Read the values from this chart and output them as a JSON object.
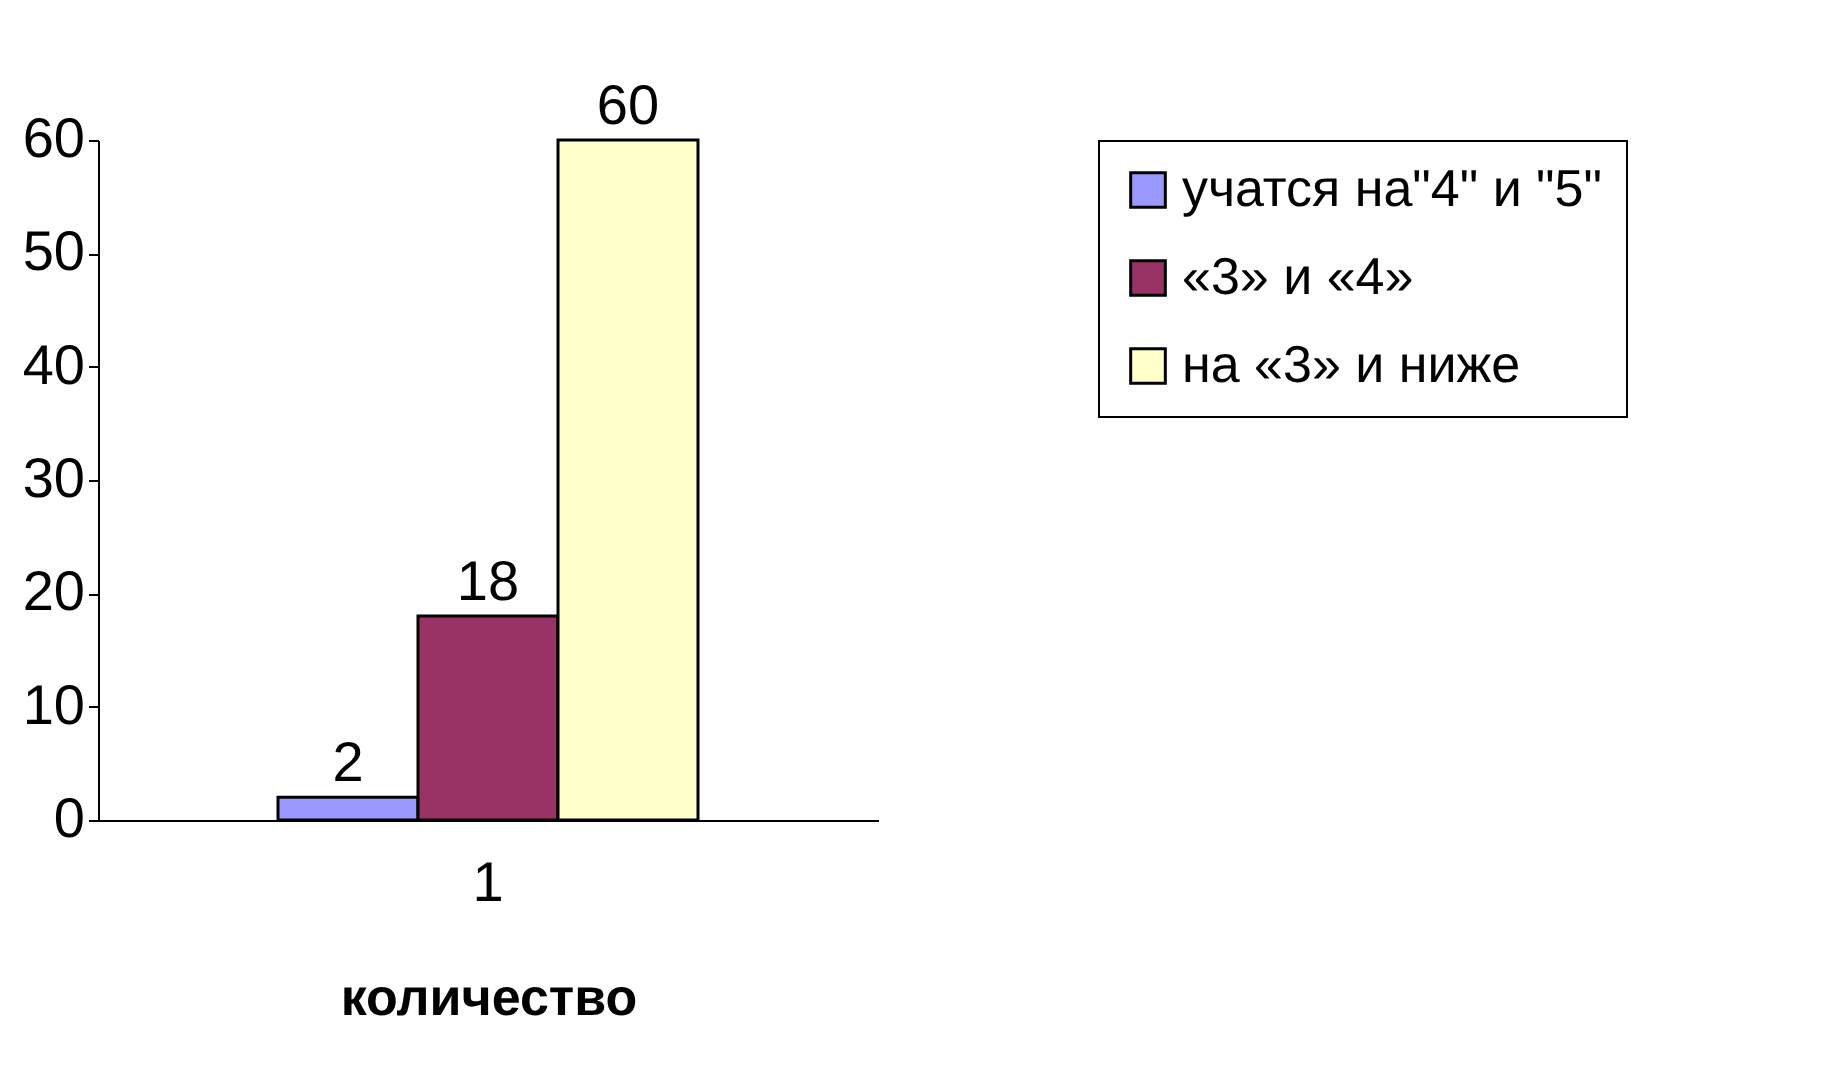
{
  "chart_data": {
    "type": "bar",
    "categories": [
      "1"
    ],
    "xlabel": "количество",
    "series": [
      {
        "name": "учатся на\"4\" и \"5\"",
        "color": "#9999ff",
        "values": [
          2
        ]
      },
      {
        "name": "«3» и «4»",
        "color": "#993366",
        "values": [
          18
        ]
      },
      {
        "name": "на «3» и ниже",
        "color": "#ffffcc",
        "values": [
          60
        ]
      }
    ],
    "ylim": [
      0,
      60
    ],
    "yticks": [
      0,
      10,
      20,
      30,
      40,
      50,
      60
    ],
    "data_labels": true,
    "legend": "right",
    "grid": false
  }
}
